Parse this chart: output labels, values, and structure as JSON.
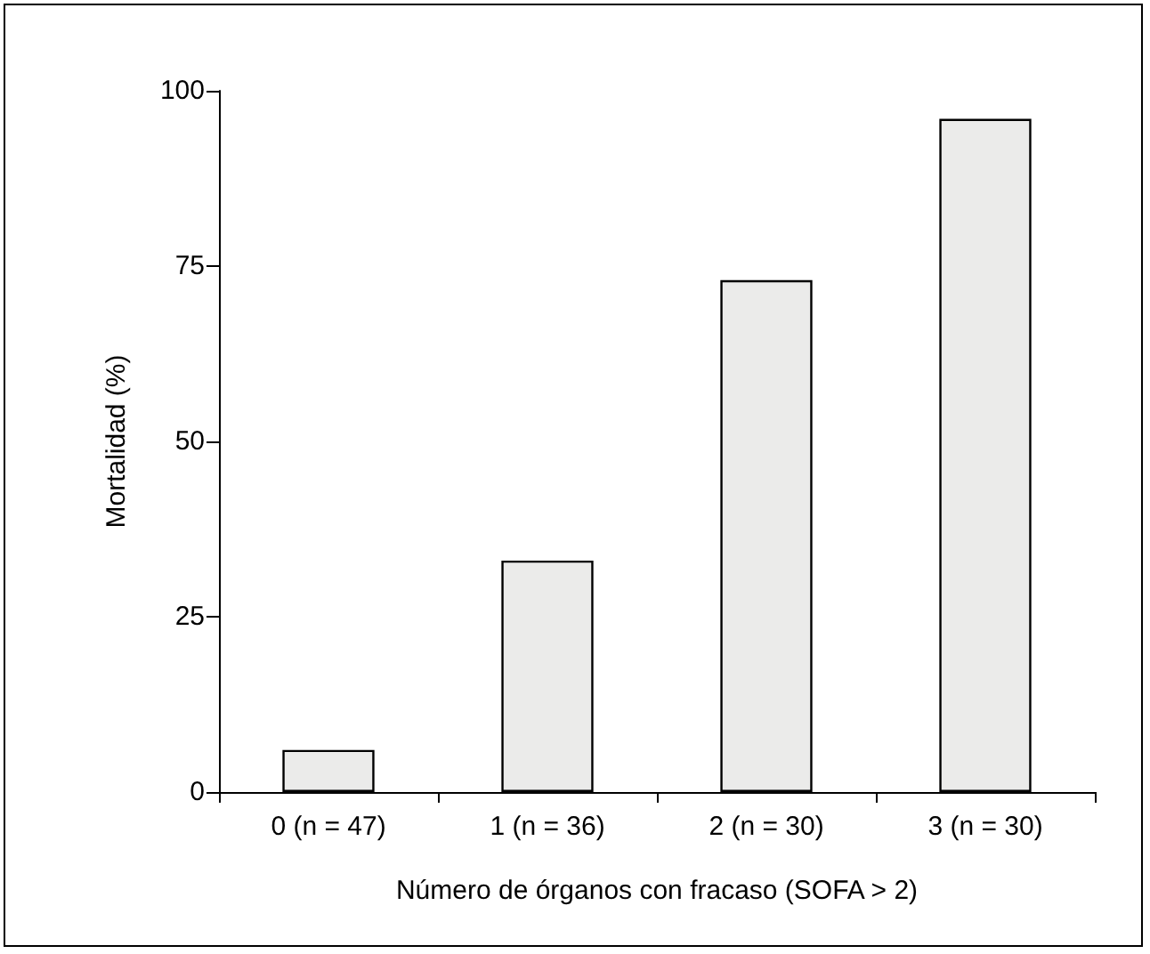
{
  "chart_data": {
    "type": "bar",
    "xlabel": "Número de órganos con fracaso (SOFA > 2)",
    "ylabel": "Mortalidad (%)",
    "categories": [
      "0 (n = 47)",
      "1 (n = 36)",
      "2 (n = 30)",
      "3 (n = 30)"
    ],
    "values": [
      6,
      33,
      73,
      96
    ],
    "color": "#ebebea",
    "ylim": [
      0,
      100
    ],
    "yticks": [
      0,
      25,
      50,
      75,
      100
    ],
    "grid": false
  }
}
